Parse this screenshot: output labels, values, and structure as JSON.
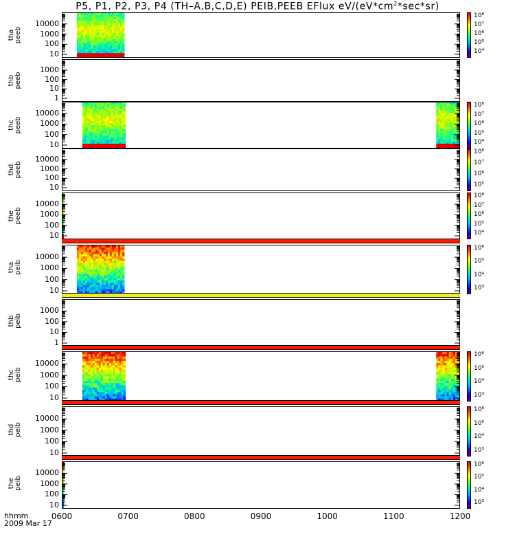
{
  "title_parts": {
    "pre": "P5, P1, P2, P3, P4 (TH–A,B,C,D,E) PEIB,PEEB EFlux eV/(eV*cm",
    "sup": "2",
    "post": "*sec*sr)"
  },
  "bottom": {
    "hhmm_label": "hhmm",
    "date_label": "2009 Mar 17"
  },
  "chart_data": {
    "type": "heatmap",
    "x_axis": {
      "tick_labels": [
        "0600",
        "0700",
        "0800",
        "0900",
        "1000",
        "1100",
        "1200"
      ],
      "range": [
        "0600",
        "1200"
      ]
    },
    "scale": "log",
    "panels": [
      {
        "probe": "tha",
        "product": "peeb",
        "y_ticks": [
          "10",
          "100",
          "1000",
          "10000"
        ],
        "colorbar_ticks": [
          "10⁴",
          "10⁵",
          "10⁶",
          "10⁷",
          "10⁸"
        ],
        "has_data_strip": false,
        "data_intervals": [
          [
            "0613",
            "0656"
          ]
        ]
      },
      {
        "probe": "thb",
        "product": "peeb",
        "y_ticks": [
          "1",
          "10",
          "100",
          "1000"
        ],
        "colorbar_ticks": [],
        "has_data_strip": false,
        "data_intervals": []
      },
      {
        "probe": "thc",
        "product": "peeb",
        "y_ticks": [
          "10",
          "100",
          "1000",
          "10000"
        ],
        "colorbar_ticks": [
          "10⁴",
          "10⁵",
          "10⁶",
          "10⁷",
          "10⁸"
        ],
        "has_data_strip": false,
        "data_intervals": [
          [
            "0618",
            "0657"
          ],
          [
            "1139",
            "1173"
          ]
        ]
      },
      {
        "probe": "thd",
        "product": "peeb",
        "y_ticks": [
          "10",
          "100",
          "1000",
          "10000"
        ],
        "colorbar_ticks": [
          "10⁵",
          "10⁶",
          "10⁷",
          "10⁸"
        ],
        "has_data_strip": false,
        "data_intervals": []
      },
      {
        "probe": "the",
        "product": "peeb",
        "y_ticks": [
          "10",
          "100",
          "1000",
          "10000"
        ],
        "colorbar_ticks": [
          "10⁴",
          "10⁵",
          "10⁶",
          "10⁷",
          "10⁸"
        ],
        "has_data_strip": false,
        "data_intervals": [
          [
            "0600",
            "0601"
          ]
        ]
      },
      {
        "probe": "tha",
        "product": "peib",
        "y_ticks": [
          "10",
          "100",
          "1000",
          "10000"
        ],
        "colorbar_ticks": [
          "10³",
          "10⁴",
          "10⁵",
          "10⁶"
        ],
        "has_data_strip": true,
        "strip_color": "#ff1a00",
        "data_intervals": [
          [
            "0613",
            "0656"
          ]
        ]
      },
      {
        "probe": "thb",
        "product": "peib",
        "y_ticks": [
          "1",
          "10",
          "100",
          "1000"
        ],
        "colorbar_ticks": [],
        "has_data_strip": true,
        "strip_color": "#f2ee1a",
        "data_intervals": []
      },
      {
        "probe": "thc",
        "product": "peib",
        "y_ticks": [
          "10",
          "100",
          "1000",
          "10000"
        ],
        "colorbar_ticks": [
          "10³",
          "10⁴",
          "10⁵",
          "10⁶"
        ],
        "has_data_strip": true,
        "strip_color": "#ff1a00",
        "data_intervals": [
          [
            "0618",
            "0657"
          ],
          [
            "1139",
            "1173"
          ]
        ]
      },
      {
        "probe": "thd",
        "product": "peib",
        "y_ticks": [
          "10",
          "100",
          "1000",
          "10000"
        ],
        "colorbar_ticks": [
          "10³",
          "10⁴",
          "10⁵",
          "10⁶"
        ],
        "has_data_strip": true,
        "strip_color": "#ff1a00",
        "data_intervals": []
      },
      {
        "probe": "the",
        "product": "peib",
        "y_ticks": [
          "10",
          "100",
          "1000",
          "10000"
        ],
        "colorbar_ticks": [
          "10³",
          "10⁴",
          "10⁵",
          "10⁶"
        ],
        "has_data_strip": true,
        "strip_color": "#ff1a00",
        "data_intervals": [
          [
            "0600",
            "0601"
          ]
        ]
      }
    ]
  }
}
